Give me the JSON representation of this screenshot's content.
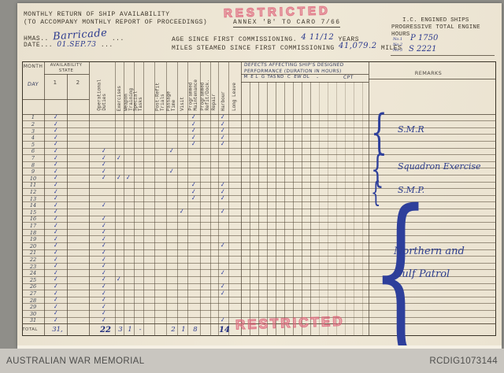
{
  "stamps": {
    "text": "RESTRICTED"
  },
  "header": {
    "title_line1": "MONTHLY RETURN OF SHIP AVAILABILITY",
    "title_line2": "(TO ACCOMPANY MONTHLY REPORT OF PROCEEDINGS)",
    "annex": "ANNEX 'B' TO CARO 7/66",
    "ship_label": "HMAS..",
    "ship_name": "Barricade",
    "ship_suffix": "...",
    "date_label": "DATE...",
    "date_value": "01.SEP.73",
    "date_suffix": "...",
    "age_label": "AGE SINCE FIRST COMMISSIONING.",
    "age_value": "4 11/12",
    "age_suffix": "YEARS",
    "miles_label": "MILES STEAMED SINCE FIRST COMMISSIONING",
    "miles_value": "41,079.2",
    "miles_suffix": "MILES",
    "engine": {
      "line1": "I.C. ENGINED SHIPS",
      "line2": "PROGRESSIVE TOTAL ENGINE",
      "line3": "HOURS",
      "entries": [
        {
          "no": "No.1",
          "value": "P 1750"
        },
        {
          "no": "No.2",
          "value": ""
        },
        {
          "no": "No.3",
          "value": "S 2221"
        }
      ]
    }
  },
  "table": {
    "month_label": "MONTH",
    "day_label": "DAY",
    "availability_line1": "AVAILABILITY",
    "availability_line2": "STATE",
    "availability_cols": [
      "1",
      "2"
    ],
    "activity_columns": [
      [
        "Operational",
        "Duties"
      ],
      [
        "Exercises"
      ],
      [
        "Weapon",
        "Training"
      ],
      [
        "Special",
        "Tasks"
      ],
      [
        "Post-Refit",
        "Trials"
      ],
      [
        "Passage",
        "Time"
      ],
      [
        "Visit"
      ],
      [
        "Programmed",
        "Maintenance"
      ],
      [
        "Programmed",
        "Refit/Dock."
      ],
      [
        "Repair"
      ],
      [
        "Harbour"
      ],
      [
        "Long Leave"
      ]
    ],
    "defects_line1": "DEFECTS AFFECTING SHIP'S DESIGNED",
    "defects_line2": "PERFORMANCE (DURATION IN HOURS)",
    "defects_columns": [
      "M",
      "E L",
      "G",
      "TAS",
      "ND",
      "C",
      "EW",
      "DL"
    ],
    "defects_tail_dash": "-",
    "defects_tail_label": "CPT",
    "remarks_label": "REMARKS",
    "days": [
      {
        "day": 1,
        "ticks": [
          "avail1",
          "pm",
          "harbour"
        ]
      },
      {
        "day": 2,
        "ticks": [
          "avail1",
          "pm",
          "harbour"
        ]
      },
      {
        "day": 3,
        "ticks": [
          "avail1",
          "pm",
          "harbour"
        ]
      },
      {
        "day": 4,
        "ticks": [
          "avail1",
          "pm",
          "harbour"
        ]
      },
      {
        "day": 5,
        "ticks": [
          "avail1",
          "pm",
          "harbour"
        ]
      },
      {
        "day": 6,
        "ticks": [
          "avail1",
          "op",
          "passage"
        ]
      },
      {
        "day": 7,
        "ticks": [
          "avail1",
          "op",
          "ex"
        ]
      },
      {
        "day": 8,
        "ticks": [
          "avail1",
          "op"
        ]
      },
      {
        "day": 9,
        "ticks": [
          "avail1",
          "op",
          "passage"
        ]
      },
      {
        "day": 10,
        "ticks": [
          "avail1",
          "op",
          "ex",
          "wt"
        ]
      },
      {
        "day": 11,
        "ticks": [
          "avail1",
          "pm",
          "harbour"
        ]
      },
      {
        "day": 12,
        "ticks": [
          "avail1",
          "pm",
          "harbour"
        ]
      },
      {
        "day": 13,
        "ticks": [
          "avail1",
          "pm",
          "harbour"
        ]
      },
      {
        "day": 14,
        "ticks": [
          "avail1",
          "op"
        ]
      },
      {
        "day": 15,
        "ticks": [
          "avail1",
          "visit",
          "harbour"
        ]
      },
      {
        "day": 16,
        "ticks": [
          "avail1",
          "op"
        ]
      },
      {
        "day": 17,
        "ticks": [
          "avail1",
          "op"
        ]
      },
      {
        "day": 18,
        "ticks": [
          "avail1",
          "op"
        ]
      },
      {
        "day": 19,
        "ticks": [
          "avail1",
          "op"
        ]
      },
      {
        "day": 20,
        "ticks": [
          "avail1",
          "op",
          "harbour"
        ]
      },
      {
        "day": 21,
        "ticks": [
          "avail1",
          "op"
        ]
      },
      {
        "day": 22,
        "ticks": [
          "avail1",
          "op"
        ]
      },
      {
        "day": 23,
        "ticks": [
          "avail1",
          "op"
        ]
      },
      {
        "day": 24,
        "ticks": [
          "avail1",
          "op",
          "harbour"
        ]
      },
      {
        "day": 25,
        "ticks": [
          "avail1",
          "op",
          "ex"
        ]
      },
      {
        "day": 26,
        "ticks": [
          "avail1",
          "op",
          "harbour"
        ]
      },
      {
        "day": 27,
        "ticks": [
          "avail1",
          "op",
          "harbour"
        ]
      },
      {
        "day": 28,
        "ticks": [
          "avail1",
          "op"
        ]
      },
      {
        "day": 29,
        "ticks": [
          "avail1",
          "op"
        ]
      },
      {
        "day": 30,
        "ticks": [
          "avail1",
          "op"
        ]
      },
      {
        "day": 31,
        "ticks": [
          "avail1",
          "op",
          "harbour"
        ]
      }
    ],
    "remarks_groups": [
      {
        "lines": [
          "S.M.R"
        ],
        "from": 1,
        "to": 5
      },
      {
        "lines": [
          "Squadron Exercise"
        ],
        "from": 7,
        "to": 10
      },
      {
        "lines": [
          "S.M.P."
        ],
        "from": 11,
        "to": 13
      },
      {
        "lines": [
          "Northern and",
          "Gulf Patrol"
        ],
        "from": 14,
        "to": 31
      }
    ],
    "total_label": "TOTAL",
    "totals": [
      {
        "col": "avail1",
        "value": "31,",
        "bold": false
      },
      {
        "col": "op",
        "value": "22",
        "bold": true
      },
      {
        "col": "ex",
        "value": "3",
        "bold": false
      },
      {
        "col": "wt",
        "value": "1",
        "bold": false
      },
      {
        "col": "st",
        "value": "-",
        "bold": false
      },
      {
        "col": "passage",
        "value": "2",
        "bold": false
      },
      {
        "col": "visit",
        "value": "1",
        "bold": false
      },
      {
        "col": "pm",
        "value": "8",
        "bold": false
      },
      {
        "col": "harbour",
        "value": "14",
        "bold": true
      }
    ]
  },
  "footer": {
    "left": "AUSTRALIAN WAR MEMORIAL",
    "right": "RCDIG1073144"
  }
}
